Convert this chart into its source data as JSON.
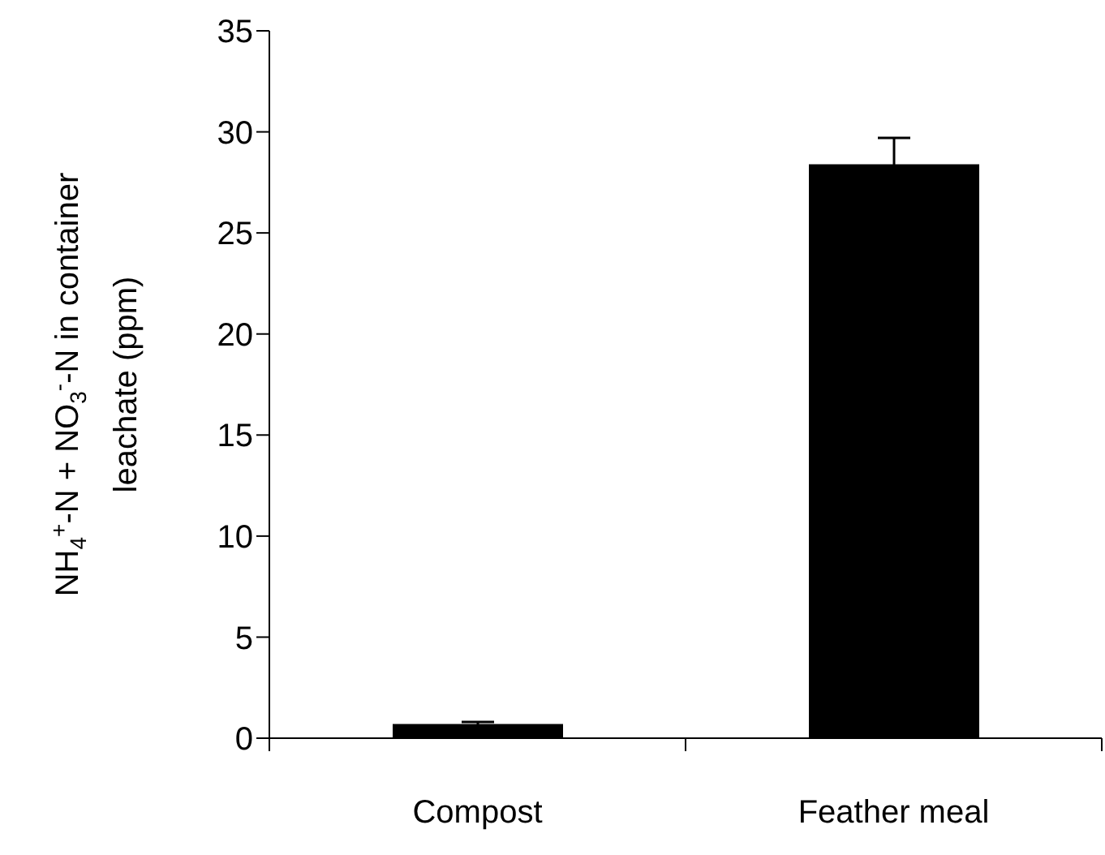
{
  "chart_data": {
    "type": "bar",
    "categories": [
      "Compost",
      "Feather meal"
    ],
    "values": [
      0.7,
      28.4
    ],
    "errors": [
      0.1,
      1.3
    ],
    "color": "#000000",
    "ylabel": "NH$_{4}$$^{+}$-N + NO$_{3}$$^{-}$-N in container leachate (ppm)",
    "ylim": [
      0,
      35
    ],
    "yticks": [
      0,
      5,
      10,
      15,
      20,
      25,
      30,
      35
    ],
    "grid": false,
    "legend": false
  }
}
